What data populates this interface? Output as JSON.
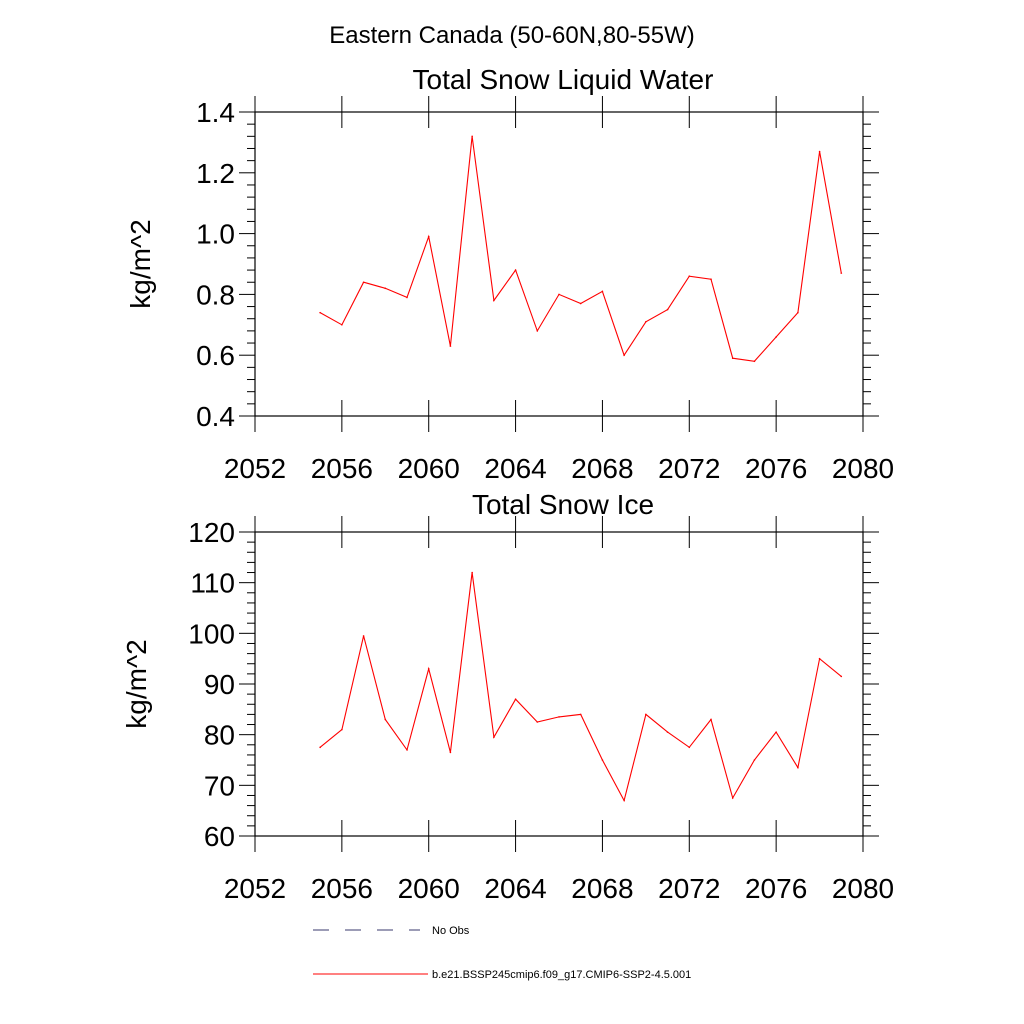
{
  "figure": {
    "title": "Eastern Canada (50-60N,80-55W)"
  },
  "chart_data": [
    {
      "type": "line",
      "title": "Total Snow Liquid Water",
      "xlabel": "",
      "ylabel": "kg/m^2",
      "xlim": [
        2052,
        2080
      ],
      "ylim": [
        0.4,
        1.4
      ],
      "xticks": [
        2052,
        2056,
        2060,
        2064,
        2068,
        2072,
        2076,
        2080
      ],
      "yticks": [
        0.4,
        0.6,
        0.8,
        1.0,
        1.2,
        1.4
      ],
      "ytick_labels": [
        "0.4",
        "0.6",
        "0.8",
        "1.0",
        "1.2",
        "1.4"
      ],
      "color": "#ff0000",
      "x": [
        2055,
        2056,
        2057,
        2058,
        2059,
        2060,
        2061,
        2062,
        2063,
        2064,
        2065,
        2066,
        2067,
        2068,
        2069,
        2070,
        2071,
        2072,
        2073,
        2074,
        2075,
        2076,
        2077,
        2078,
        2079
      ],
      "values": [
        0.74,
        0.7,
        0.84,
        0.82,
        0.79,
        0.99,
        0.63,
        1.32,
        0.78,
        0.88,
        0.68,
        0.8,
        0.77,
        0.81,
        0.6,
        0.71,
        0.75,
        0.86,
        0.85,
        0.59,
        0.58,
        0.66,
        0.74,
        1.27,
        0.87
      ]
    },
    {
      "type": "line",
      "title": "Total Snow Ice",
      "xlabel": "",
      "ylabel": "kg/m^2",
      "xlim": [
        2052,
        2080
      ],
      "ylim": [
        60,
        120
      ],
      "xticks": [
        2052,
        2056,
        2060,
        2064,
        2068,
        2072,
        2076,
        2080
      ],
      "yticks": [
        60,
        70,
        80,
        90,
        100,
        110,
        120
      ],
      "ytick_labels": [
        "60",
        "70",
        "80",
        "90",
        "100",
        "110",
        "120"
      ],
      "color": "#ff0000",
      "x": [
        2055,
        2056,
        2057,
        2058,
        2059,
        2060,
        2061,
        2062,
        2063,
        2064,
        2065,
        2066,
        2067,
        2068,
        2069,
        2070,
        2071,
        2072,
        2073,
        2074,
        2075,
        2076,
        2077,
        2078,
        2079
      ],
      "values": [
        77.5,
        81,
        99.5,
        83,
        77,
        93,
        76.5,
        112,
        79.5,
        87,
        82.5,
        83.5,
        84,
        75,
        67,
        84,
        80.5,
        77.5,
        83,
        67.5,
        75,
        80.5,
        73.5,
        95,
        91.5
      ]
    }
  ],
  "legend": [
    {
      "label": "No Obs",
      "style": "dashed",
      "color": "#3a3a6e"
    },
    {
      "label": "b.e21.BSSP245cmip6.f09_g17.CMIP6-SSP2-4.5.001",
      "style": "solid",
      "color": "#ff0000"
    }
  ]
}
